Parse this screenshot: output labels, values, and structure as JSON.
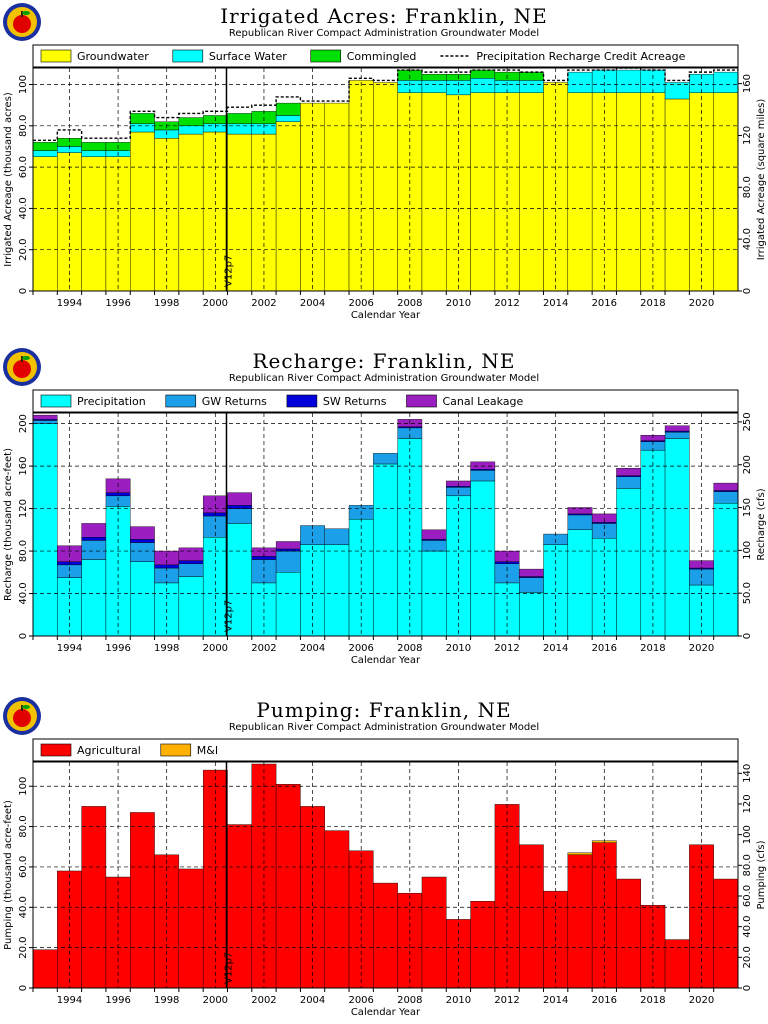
{
  "colors": {
    "groundwater": "#ffff00",
    "surface": "#00ffff",
    "commingled": "#00e000",
    "precip": "#00ffff",
    "gw_returns": "#1a9fe8",
    "sw_returns": "#0000dd",
    "canal": "#9b1fc0",
    "agricultural": "#ff0000",
    "mi": "#ffb000",
    "grid": "#000000"
  },
  "logo_icon": "apple-logo-icon",
  "chart_data": [
    {
      "type": "bar",
      "title": "Irrigated Acres: Franklin, NE",
      "subtitle": "Republican River Compact Administration Groundwater Model",
      "xlabel": "Calendar Year",
      "ylabel": "Irrigated Acreage (thousand acres)",
      "ylabel_right": "Irrigated Acreage (square miles)",
      "ylim": [
        0,
        108
      ],
      "yticks": [
        "0",
        "20.0",
        "40.0",
        "60.0",
        "80.0",
        "100"
      ],
      "yticks_right": [
        "0",
        "40.0",
        "80.0",
        "120",
        "160"
      ],
      "xticks": [
        "1994",
        "1996",
        "1998",
        "2000",
        "2002",
        "2004",
        "2006",
        "2008",
        "2010",
        "2012",
        "2014",
        "2016",
        "2018",
        "2020"
      ],
      "marker_label": "V12p7",
      "years": [
        1993,
        1994,
        1995,
        1996,
        1997,
        1998,
        1999,
        2000,
        2001,
        2002,
        2003,
        2004,
        2005,
        2006,
        2007,
        2008,
        2009,
        2010,
        2011,
        2012,
        2013,
        2014,
        2015,
        2016,
        2017,
        2018,
        2019,
        2020,
        2021
      ],
      "series": [
        {
          "name": "Groundwater",
          "values": [
            65,
            67,
            65,
            65,
            77,
            74,
            76,
            77,
            76,
            76,
            82,
            91,
            91,
            102,
            101,
            96,
            96,
            95,
            96,
            96,
            96,
            101,
            96,
            96,
            96,
            96,
            93,
            96,
            96
          ]
        },
        {
          "name": "Surface Water",
          "values": [
            3,
            3,
            3,
            3,
            4,
            4,
            4,
            4,
            5,
            5,
            3,
            0,
            0,
            0,
            0,
            6,
            6,
            7,
            7,
            6,
            6,
            0,
            10,
            11,
            11,
            11,
            8,
            9,
            10
          ]
        },
        {
          "name": "Commingled",
          "values": [
            4,
            4,
            4,
            4,
            5,
            4,
            4,
            4,
            5,
            6,
            6,
            0,
            0,
            0,
            0,
            5,
            3,
            3,
            4,
            4,
            4,
            0,
            0,
            0,
            0,
            0,
            0,
            0,
            0
          ]
        }
      ],
      "line_series": {
        "name": "Precipitation Recharge Credit Acreage",
        "values": [
          73,
          78,
          74,
          74,
          87,
          84,
          86,
          87,
          89,
          90,
          94,
          92,
          92,
          103,
          102,
          107,
          106,
          106,
          107,
          107,
          106,
          102,
          107,
          107,
          108,
          107,
          102,
          106,
          107
        ]
      }
    },
    {
      "type": "bar",
      "title": "Recharge: Franklin, NE",
      "subtitle": "Republican River Compact Administration Groundwater Model",
      "xlabel": "Calendar Year",
      "ylabel": "Recharge (thousand acre-feet)",
      "ylabel_right": "Recharge (cfs)",
      "ylim": [
        0,
        210
      ],
      "yticks": [
        "0",
        "40.0",
        "80.0",
        "120",
        "160",
        "200"
      ],
      "yticks_right": [
        "0",
        "50.0",
        "100",
        "150",
        "200",
        "250"
      ],
      "xticks": [
        "1994",
        "1996",
        "1998",
        "2000",
        "2002",
        "2004",
        "2006",
        "2008",
        "2010",
        "2012",
        "2014",
        "2016",
        "2018",
        "2020"
      ],
      "marker_label": "V12p7",
      "years": [
        1993,
        1994,
        1995,
        1996,
        1997,
        1998,
        1999,
        2000,
        2001,
        2002,
        2003,
        2004,
        2005,
        2006,
        2007,
        2008,
        2009,
        2010,
        2011,
        2012,
        2013,
        2014,
        2015,
        2016,
        2017,
        2018,
        2019,
        2020,
        2021
      ],
      "series": [
        {
          "name": "Precipitation",
          "values": [
            200,
            55,
            72,
            122,
            70,
            50,
            56,
            93,
            106,
            50,
            60,
            86,
            86,
            110,
            162,
            186,
            80,
            132,
            146,
            50,
            41,
            86,
            100,
            92,
            139,
            175,
            186,
            48,
            125
          ]
        },
        {
          "name": "GW Returns",
          "values": [
            3,
            12,
            18,
            10,
            18,
            14,
            12,
            20,
            14,
            22,
            20,
            18,
            15,
            13,
            10,
            10,
            10,
            8,
            10,
            18,
            14,
            10,
            14,
            14,
            11,
            8,
            6,
            15,
            11
          ]
        },
        {
          "name": "SW Returns",
          "values": [
            1,
            3,
            3,
            3,
            3,
            3,
            3,
            3,
            3,
            3,
            2,
            0,
            0,
            0,
            0,
            1,
            1,
            1,
            1,
            2,
            1,
            0,
            1,
            1,
            1,
            1,
            1,
            1,
            1
          ]
        },
        {
          "name": "Canal Leakage",
          "values": [
            4,
            15,
            13,
            13,
            12,
            13,
            12,
            16,
            12,
            8,
            7,
            0,
            0,
            0,
            0,
            7,
            9,
            5,
            7,
            10,
            7,
            0,
            6,
            8,
            7,
            5,
            5,
            7,
            7
          ]
        }
      ]
    },
    {
      "type": "bar",
      "title": "Pumping: Franklin, NE",
      "subtitle": "Republican River Compact Administration Groundwater Model",
      "xlabel": "Calendar Year",
      "ylabel": "Pumping (thousand acre-feet)",
      "ylabel_right": "Pumping (cfs)",
      "ylim": [
        0,
        112
      ],
      "yticks": [
        "0",
        "20.0",
        "40.0",
        "60.0",
        "80.0",
        "100"
      ],
      "yticks_right": [
        "0",
        "20.0",
        "40.0",
        "60.0",
        "80.0",
        "100",
        "120",
        "140"
      ],
      "xticks": [
        "1994",
        "1996",
        "1998",
        "2000",
        "2002",
        "2004",
        "2006",
        "2008",
        "2010",
        "2012",
        "2014",
        "2016",
        "2018",
        "2020"
      ],
      "marker_label": "V12p7",
      "years": [
        1993,
        1994,
        1995,
        1996,
        1997,
        1998,
        1999,
        2000,
        2001,
        2002,
        2003,
        2004,
        2005,
        2006,
        2007,
        2008,
        2009,
        2010,
        2011,
        2012,
        2013,
        2014,
        2015,
        2016,
        2017,
        2018,
        2019,
        2020,
        2021
      ],
      "series": [
        {
          "name": "Agricultural",
          "values": [
            19,
            58,
            90,
            55,
            87,
            66,
            59,
            108,
            81,
            111,
            101,
            90,
            78,
            68,
            52,
            47,
            55,
            34,
            43,
            91,
            71,
            48,
            66,
            72,
            54,
            41,
            24,
            71,
            54
          ]
        },
        {
          "name": "M&I",
          "values": [
            0,
            0,
            0,
            0,
            0,
            0,
            0,
            0,
            0,
            0,
            0,
            0,
            0,
            0,
            0,
            0,
            0,
            0,
            0,
            0,
            0,
            0,
            1,
            1,
            0,
            0,
            0,
            0,
            0
          ]
        }
      ]
    }
  ]
}
